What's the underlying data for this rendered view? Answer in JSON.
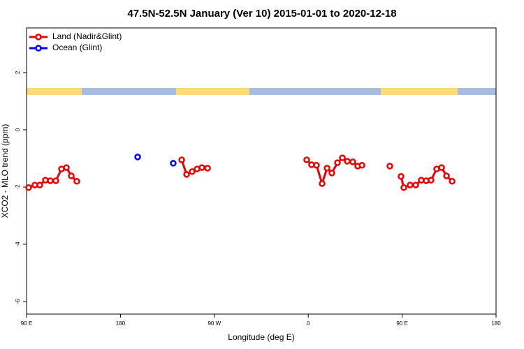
{
  "chart_data": {
    "type": "line",
    "title": "47.5N-52.5N January (Ver 10)   2015-01-01 to 2020-12-18",
    "xlabel": "Longitude (deg E)",
    "ylabel": "XCO2 - MLO trend (ppm)",
    "xlim": [
      90,
      540
    ],
    "ylim": [
      -6.44,
      3.56
    ],
    "xticks": [
      {
        "value": 90,
        "label": "90 E"
      },
      180,
      {
        "value": 270,
        "label": "90 W"
      },
      {
        "value": 360,
        "label": "0"
      },
      {
        "value": 450,
        "label": "90 E"
      },
      {
        "value": 540,
        "label": "180"
      }
    ],
    "yticks": [
      -6,
      -4,
      -2,
      0,
      2
    ],
    "legend": "top-left",
    "series": [
      {
        "name": "Land (Nadir&Glint)",
        "color": "#ee0000",
        "x": [
          92.0,
          98.0,
          102.7,
          108.1,
          112.8,
          118.1,
          123.5,
          128.2,
          132.9,
          138.2,
          null,
          238.7,
          243.4,
          248.7,
          253.4,
          258.1,
          263.5,
          null,
          358.5,
          363.2,
          367.9,
          373.3,
          378.0,
          382.6,
          388.0,
          392.7,
          397.4,
          402.7,
          407.4,
          411.5,
          null,
          438.2,
          null,
          448.9,
          451.6,
          457.6,
          463.0,
          468.3,
          473.0,
          477.7,
          483.1,
          487.8,
          492.5,
          497.9
        ],
        "values": [
          -2.02,
          -1.93,
          -1.93,
          -1.76,
          -1.78,
          -1.78,
          -1.37,
          -1.32,
          -1.61,
          -1.8,
          null,
          -1.05,
          -1.56,
          -1.46,
          -1.37,
          -1.32,
          -1.34,
          null,
          -1.05,
          -1.22,
          -1.24,
          -1.88,
          -1.34,
          -1.51,
          -1.15,
          -0.98,
          -1.1,
          -1.12,
          -1.27,
          -1.24,
          null,
          -1.27,
          null,
          -1.63,
          -2.02,
          -1.93,
          -1.93,
          -1.76,
          -1.78,
          -1.76,
          -1.37,
          -1.32,
          -1.61,
          -1.8
        ]
      },
      {
        "name": "Ocean (Glint)",
        "color": "#0000ee",
        "x": [
          196.5,
          null,
          230.6
        ],
        "values": [
          -0.95,
          null,
          -1.17
        ]
      }
    ]
  }
}
